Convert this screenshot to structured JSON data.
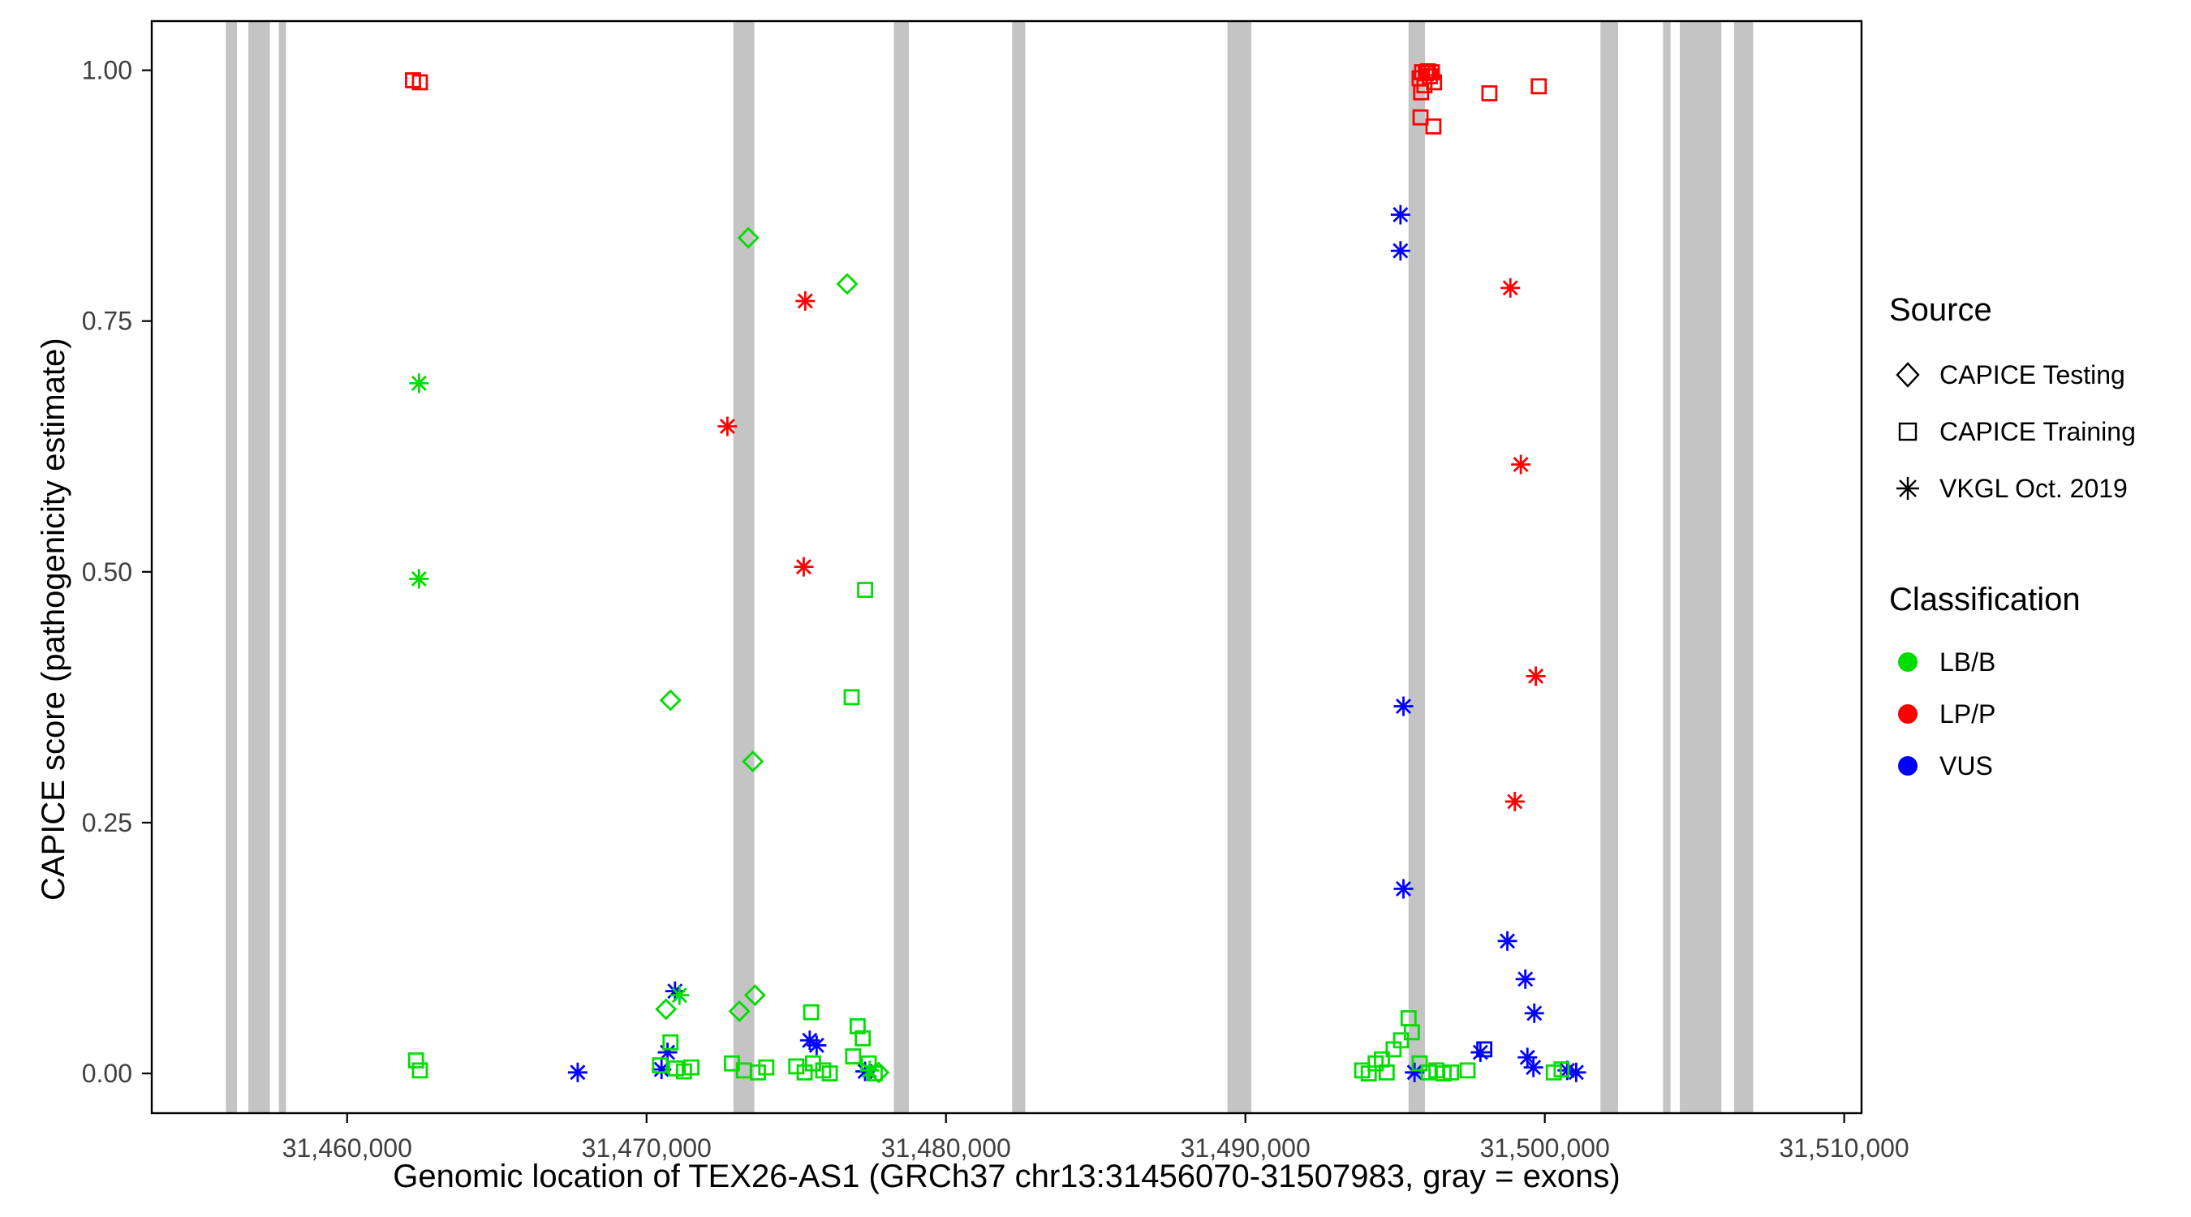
{
  "chart_data": {
    "type": "scatter",
    "title": "",
    "xlabel": "Genomic location of TEX26-AS1 (GRCh37 chr13:31456070-31507983, gray = exons)",
    "ylabel": "CAPICE score (pathogenicity estimate)",
    "xlim": [
      31453474,
      31510579
    ],
    "ylim": [
      -0.0396,
      1.049
    ],
    "x_ticks": [
      31460000,
      31470000,
      31480000,
      31490000,
      31500000,
      31510000
    ],
    "x_tick_labels": [
      "31,460,000",
      "31,470,000",
      "31,480,000",
      "31,490,000",
      "31,500,000",
      "31,510,000"
    ],
    "y_ticks": [
      0,
      0.25,
      0.5,
      0.75,
      1
    ],
    "y_tick_labels": [
      "0.00",
      "0.25",
      "0.50",
      "0.75",
      "1.00"
    ],
    "grid": false,
    "exon_color": "#C4C4C4",
    "exons": [
      [
        31455950,
        31456320
      ],
      [
        31456700,
        31457420
      ],
      [
        31457720,
        31457960
      ],
      [
        31472900,
        31473600
      ],
      [
        31478260,
        31478760
      ],
      [
        31482210,
        31482650
      ],
      [
        31489400,
        31490200
      ],
      [
        31495450,
        31496000
      ],
      [
        31501860,
        31502450
      ],
      [
        31503950,
        31504200
      ],
      [
        31504510,
        31505900
      ],
      [
        31506320,
        31506960
      ]
    ],
    "classification_colors": {
      "LB/B": "#00DD00",
      "LP/P": "#FF0000",
      "VUS": "#0000FF"
    },
    "legend": {
      "source": {
        "title": "Source",
        "items": [
          {
            "label": "CAPICE Testing",
            "shape": "diamond"
          },
          {
            "label": "CAPICE Training",
            "shape": "square"
          },
          {
            "label": "VKGL Oct. 2019",
            "shape": "asterisk"
          }
        ]
      },
      "classification": {
        "title": "Classification",
        "items": [
          {
            "label": "LB/B",
            "color": "#00DD00"
          },
          {
            "label": "LP/P",
            "color": "#FF0000"
          },
          {
            "label": "VUS",
            "color": "#0000FF"
          }
        ]
      }
    },
    "point_format": [
      "x",
      "y",
      "shape",
      "classification"
    ],
    "points": [
      [
        31462200,
        0.99,
        "square",
        "LP/P"
      ],
      [
        31462430,
        0.988,
        "square",
        "LP/P"
      ],
      [
        31472700,
        0.645,
        "asterisk",
        "LP/P"
      ],
      [
        31475300,
        0.77,
        "asterisk",
        "LP/P"
      ],
      [
        31475250,
        0.505,
        "asterisk",
        "LP/P"
      ],
      [
        31495820,
        0.992,
        "square",
        "LP/P"
      ],
      [
        31495900,
        0.998,
        "square",
        "LP/P"
      ],
      [
        31495980,
        0.985,
        "square",
        "LP/P"
      ],
      [
        31496030,
        0.997,
        "square",
        "LP/P"
      ],
      [
        31496100,
        0.999,
        "square",
        "LP/P"
      ],
      [
        31496160,
        0.994,
        "square",
        "LP/P"
      ],
      [
        31496230,
        0.998,
        "square",
        "LP/P"
      ],
      [
        31496300,
        0.988,
        "square",
        "LP/P"
      ],
      [
        31495870,
        0.978,
        "square",
        "LP/P"
      ],
      [
        31495850,
        0.953,
        "square",
        "LP/P"
      ],
      [
        31496280,
        0.944,
        "square",
        "LP/P"
      ],
      [
        31498150,
        0.977,
        "square",
        "LP/P"
      ],
      [
        31499800,
        0.984,
        "square",
        "LP/P"
      ],
      [
        31498850,
        0.783,
        "asterisk",
        "LP/P"
      ],
      [
        31499200,
        0.607,
        "asterisk",
        "LP/P"
      ],
      [
        31499700,
        0.396,
        "asterisk",
        "LP/P"
      ],
      [
        31499000,
        0.271,
        "asterisk",
        "LP/P"
      ],
      [
        31467700,
        0.001,
        "asterisk",
        "VUS"
      ],
      [
        31470500,
        0.004,
        "asterisk",
        "VUS"
      ],
      [
        31470700,
        0.021,
        "asterisk",
        "VUS"
      ],
      [
        31470950,
        0.082,
        "asterisk",
        "VUS"
      ],
      [
        31475450,
        0.033,
        "asterisk",
        "VUS"
      ],
      [
        31475680,
        0.028,
        "asterisk",
        "VUS"
      ],
      [
        31477300,
        0.002,
        "asterisk",
        "VUS"
      ],
      [
        31495180,
        0.856,
        "asterisk",
        "VUS"
      ],
      [
        31495180,
        0.82,
        "asterisk",
        "VUS"
      ],
      [
        31495280,
        0.366,
        "asterisk",
        "VUS"
      ],
      [
        31495280,
        0.184,
        "asterisk",
        "VUS"
      ],
      [
        31495650,
        0.001,
        "asterisk",
        "VUS"
      ],
      [
        31497850,
        0.021,
        "asterisk",
        "VUS"
      ],
      [
        31497980,
        0.024,
        "square",
        "VUS"
      ],
      [
        31498750,
        0.132,
        "asterisk",
        "VUS"
      ],
      [
        31499350,
        0.094,
        "asterisk",
        "VUS"
      ],
      [
        31499650,
        0.06,
        "asterisk",
        "VUS"
      ],
      [
        31499420,
        0.016,
        "asterisk",
        "VUS"
      ],
      [
        31499620,
        0.006,
        "asterisk",
        "VUS"
      ],
      [
        31500750,
        0.003,
        "asterisk",
        "VUS"
      ],
      [
        31501050,
        0.001,
        "asterisk",
        "VUS"
      ],
      [
        31462400,
        0.688,
        "asterisk",
        "LB/B"
      ],
      [
        31462400,
        0.493,
        "asterisk",
        "LB/B"
      ],
      [
        31471100,
        0.078,
        "asterisk",
        "LB/B"
      ],
      [
        31477450,
        0.003,
        "asterisk",
        "LB/B"
      ],
      [
        31470800,
        0.372,
        "diamond",
        "LB/B"
      ],
      [
        31470650,
        0.064,
        "diamond",
        "LB/B"
      ],
      [
        31473400,
        0.833,
        "diamond",
        "LB/B"
      ],
      [
        31473550,
        0.311,
        "diamond",
        "LB/B"
      ],
      [
        31473100,
        0.062,
        "diamond",
        "LB/B"
      ],
      [
        31473620,
        0.078,
        "diamond",
        "LB/B"
      ],
      [
        31476700,
        0.787,
        "diamond",
        "LB/B"
      ],
      [
        31477750,
        0.001,
        "diamond",
        "LB/B"
      ],
      [
        31462300,
        0.013,
        "square",
        "LB/B"
      ],
      [
        31462430,
        0.003,
        "square",
        "LB/B"
      ],
      [
        31470800,
        0.031,
        "square",
        "LB/B"
      ],
      [
        31470450,
        0.008,
        "square",
        "LB/B"
      ],
      [
        31470980,
        0.005,
        "square",
        "LB/B"
      ],
      [
        31471250,
        0.002,
        "square",
        "LB/B"
      ],
      [
        31471500,
        0.006,
        "square",
        "LB/B"
      ],
      [
        31472850,
        0.01,
        "square",
        "LB/B"
      ],
      [
        31473250,
        0.003,
        "square",
        "LB/B"
      ],
      [
        31473720,
        0.001,
        "square",
        "LB/B"
      ],
      [
        31474000,
        0.006,
        "square",
        "LB/B"
      ],
      [
        31475000,
        0.007,
        "square",
        "LB/B"
      ],
      [
        31475280,
        0.001,
        "square",
        "LB/B"
      ],
      [
        31475500,
        0.061,
        "square",
        "LB/B"
      ],
      [
        31475560,
        0.01,
        "square",
        "LB/B"
      ],
      [
        31475900,
        0.003,
        "square",
        "LB/B"
      ],
      [
        31476120,
        0.0,
        "square",
        "LB/B"
      ],
      [
        31476850,
        0.375,
        "square",
        "LB/B"
      ],
      [
        31477300,
        0.482,
        "square",
        "LB/B"
      ],
      [
        31477050,
        0.047,
        "square",
        "LB/B"
      ],
      [
        31477220,
        0.035,
        "square",
        "LB/B"
      ],
      [
        31476900,
        0.017,
        "square",
        "LB/B"
      ],
      [
        31477420,
        0.01,
        "square",
        "LB/B"
      ],
      [
        31477620,
        0.0,
        "square",
        "LB/B"
      ],
      [
        31493900,
        0.003,
        "square",
        "LB/B"
      ],
      [
        31494120,
        0.0,
        "square",
        "LB/B"
      ],
      [
        31494350,
        0.01,
        "square",
        "LB/B"
      ],
      [
        31494560,
        0.014,
        "square",
        "LB/B"
      ],
      [
        31494720,
        0.001,
        "square",
        "LB/B"
      ],
      [
        31494950,
        0.024,
        "square",
        "LB/B"
      ],
      [
        31495200,
        0.033,
        "square",
        "LB/B"
      ],
      [
        31495450,
        0.055,
        "square",
        "LB/B"
      ],
      [
        31495560,
        0.041,
        "square",
        "LB/B"
      ],
      [
        31495820,
        0.01,
        "square",
        "LB/B"
      ],
      [
        31496120,
        0.001,
        "square",
        "LB/B"
      ],
      [
        31496380,
        0.003,
        "square",
        "LB/B"
      ],
      [
        31496620,
        0.0,
        "square",
        "LB/B"
      ],
      [
        31496870,
        0.001,
        "square",
        "LB/B"
      ],
      [
        31497420,
        0.003,
        "square",
        "LB/B"
      ],
      [
        31500300,
        0.001,
        "square",
        "LB/B"
      ],
      [
        31500560,
        0.004,
        "square",
        "LB/B"
      ]
    ]
  }
}
